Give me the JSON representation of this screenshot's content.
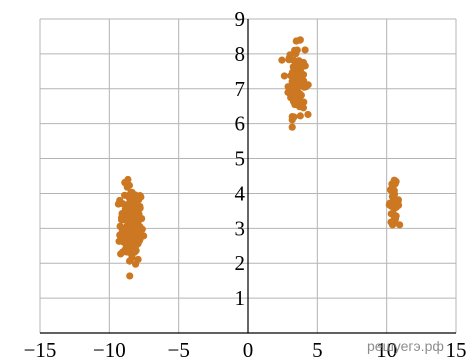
{
  "chart_data": {
    "type": "scatter",
    "title": "",
    "xlabel": "",
    "ylabel": "",
    "xlim": [
      -15,
      15
    ],
    "ylim": [
      0,
      9
    ],
    "grid": true,
    "x_ticks": [
      -15,
      -10,
      -5,
      0,
      5,
      10,
      15
    ],
    "x_tick_labels": [
      "−15",
      "−10",
      "−5",
      "0",
      "5",
      "10",
      "15"
    ],
    "y_ticks": [
      1,
      2,
      3,
      4,
      5,
      6,
      7,
      8,
      9
    ],
    "y_tick_labels": [
      "1",
      "2",
      "3",
      "4",
      "5",
      "6",
      "7",
      "8",
      "9"
    ],
    "marker_color": "#cc7722",
    "grid_color": "#b4b4b4",
    "clusters": [
      {
        "center": [
          -8.4,
          3.1
        ],
        "spread": [
          0.75,
          0.62
        ],
        "count": 170,
        "x_range": [
          -9.8,
          -6.6
        ],
        "y_range": [
          1.4,
          4.4
        ]
      },
      {
        "center": [
          3.5,
          7.25
        ],
        "spread": [
          0.55,
          0.55
        ],
        "count": 110,
        "x_range": [
          2.0,
          5.0
        ],
        "y_range": [
          5.9,
          8.5
        ]
      },
      {
        "center": [
          10.5,
          3.75
        ],
        "spread": [
          0.35,
          0.3
        ],
        "count": 38,
        "x_range": [
          9.8,
          11.4
        ],
        "y_range": [
          3.1,
          4.5
        ]
      }
    ]
  },
  "watermark": "решуегэ.рф"
}
